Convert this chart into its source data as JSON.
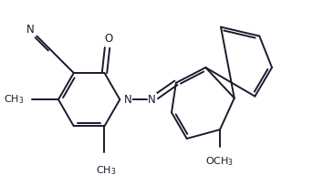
{
  "background_color": "#ffffff",
  "line_color": "#1a1a2e",
  "line_width": 1.4,
  "font_size": 8.5,
  "figsize": [
    3.43,
    2.15
  ],
  "dpi": 100,
  "xlim": [
    0.0,
    10.0
  ],
  "ylim": [
    0.0,
    6.3
  ]
}
